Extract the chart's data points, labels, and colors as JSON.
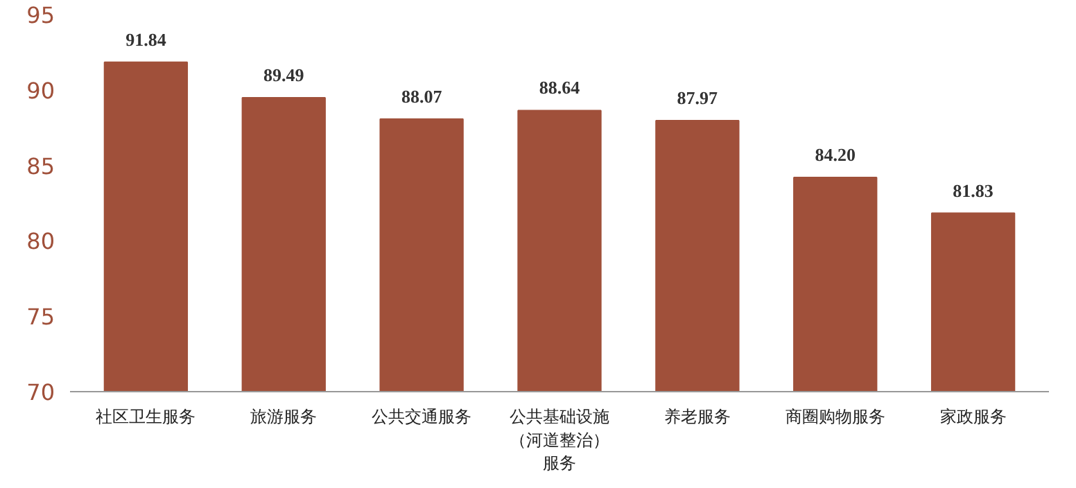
{
  "chart_data": {
    "type": "bar",
    "categories": [
      "社区卫生服务",
      "旅游服务",
      "公共交通服务",
      "公共基础设施（河道整治）服务",
      "养老服务",
      "商圈购物服务",
      "家政服务"
    ],
    "values": [
      91.84,
      89.49,
      88.07,
      88.64,
      87.97,
      84.2,
      81.83
    ],
    "value_labels": [
      "91.84",
      "89.49",
      "88.07",
      "88.64",
      "87.97",
      "84.20",
      "81.83"
    ],
    "color": "#a0503a",
    "ylim": [
      70,
      95
    ],
    "yticks": [
      70,
      75,
      80,
      85,
      90,
      95
    ],
    "grid": false
  }
}
